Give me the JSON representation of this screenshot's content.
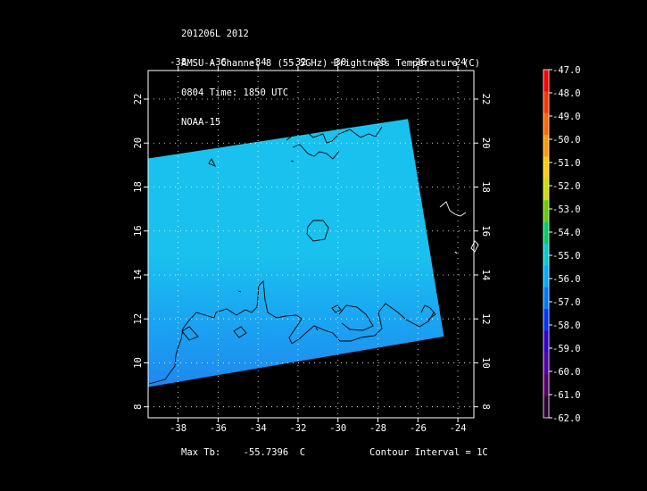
{
  "header": {
    "line1": "201206L 2012",
    "line2": "AMSU-A Channel 8 (55.5GHz) Brightness Temperature (C)",
    "line3": "0804 Time: 1850 UTC",
    "line4": "NOAA-15"
  },
  "footer": {
    "max_tb_label": "Max Tb:",
    "max_tb_value": "-55.7396",
    "max_tb_unit": "C",
    "contour_interval": "Contour Interval = 1C"
  },
  "chart_data": {
    "type": "heatmap",
    "title": "AMSU-A Channel 8 (55.5GHz) Brightness Temperature (C)",
    "x_axis": {
      "range": [
        -39.5,
        -23.2
      ],
      "ticks": [
        -38,
        -36,
        -34,
        -32,
        -30,
        -28,
        -26,
        -24
      ],
      "tick_labels": [
        "-38",
        "-36",
        "-34",
        "-32",
        "-30",
        "-28",
        "-26",
        "-24"
      ]
    },
    "y_axis": {
      "range": [
        7.5,
        23.3
      ],
      "ticks": [
        8,
        10,
        12,
        14,
        16,
        18,
        20,
        22
      ],
      "tick_labels": [
        "8",
        "10",
        "12",
        "14",
        "16",
        "18",
        "20",
        "22"
      ]
    },
    "grid": true,
    "colorbar": {
      "min": -62.0,
      "max": -47.0,
      "step": 1.0,
      "labels": [
        "-47.0",
        "-48.0",
        "-49.0",
        "-50.0",
        "-51.0",
        "-52.0",
        "-53.0",
        "-54.0",
        "-55.0",
        "-56.0",
        "-57.0",
        "-58.0",
        "-59.0",
        "-60.0",
        "-61.0",
        "-62.0"
      ],
      "colors": [
        "#ff0000",
        "#ff3300",
        "#ff6600",
        "#ff9900",
        "#ffcc00",
        "#ccdd00",
        "#66cc00",
        "#00cc66",
        "#00cccc",
        "#00aaff",
        "#0077ff",
        "#0033ff",
        "#3300cc",
        "#5500aa",
        "#550066",
        "#2a0033"
      ]
    },
    "swath_corners": [
      [
        -39.5,
        19.3
      ],
      [
        -26.5,
        21.1
      ],
      [
        -24.7,
        11.2
      ],
      [
        -39.5,
        8.9
      ]
    ],
    "swath_fill": {
      "low_lat_color": "#1e88f0",
      "high_lat_color": "#19c2ee",
      "typical_value_range": [
        -57.0,
        -55.7
      ]
    },
    "max_tb": -55.7396,
    "contour_interval": 1,
    "contour_value_range": [
      -57.0,
      -56.0
    ]
  }
}
